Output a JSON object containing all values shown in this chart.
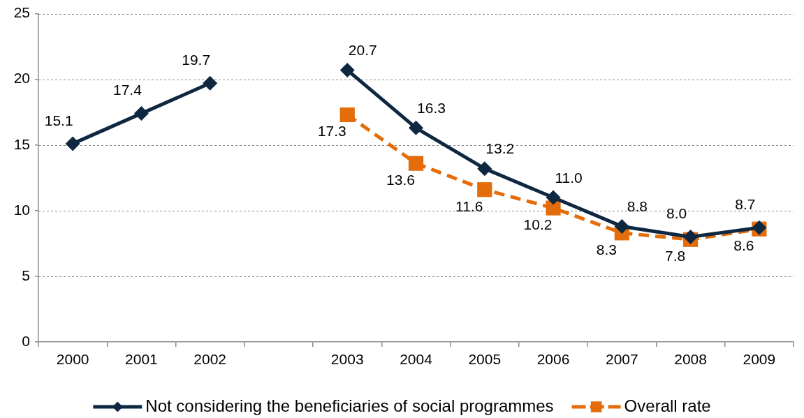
{
  "chart_data": {
    "type": "line",
    "categories": [
      "2000",
      "2001",
      "2002",
      null,
      "2003",
      "2004",
      "2005",
      "2006",
      "2007",
      "2008",
      "2009"
    ],
    "series": [
      {
        "name": "Not considering the beneficiaries of social programmes",
        "color": "#0f2841",
        "marker": "diamond",
        "line_style": "solid",
        "values": [
          15.1,
          17.4,
          19.7,
          null,
          20.7,
          16.3,
          13.2,
          11.0,
          8.8,
          8.0,
          8.7
        ],
        "value_labels": [
          "15.1",
          "17.4",
          "19.7",
          null,
          "20.7",
          "16.3",
          "13.2",
          "11.0",
          "8.8",
          "8.0",
          "8.7"
        ]
      },
      {
        "name": "Overall rate",
        "color": "#e46c0a",
        "marker": "square",
        "line_style": "dashed",
        "values": [
          null,
          null,
          null,
          null,
          17.3,
          13.6,
          11.6,
          10.2,
          8.3,
          7.8,
          8.6
        ],
        "value_labels": [
          null,
          null,
          null,
          null,
          "17.3",
          "13.6",
          "11.6",
          "10.2",
          "8.3",
          "7.8",
          "8.6"
        ]
      }
    ],
    "ylim": [
      0,
      25
    ],
    "yticks": [
      0,
      5,
      10,
      15,
      20,
      25
    ],
    "grid": "y",
    "legend": "bottom"
  }
}
